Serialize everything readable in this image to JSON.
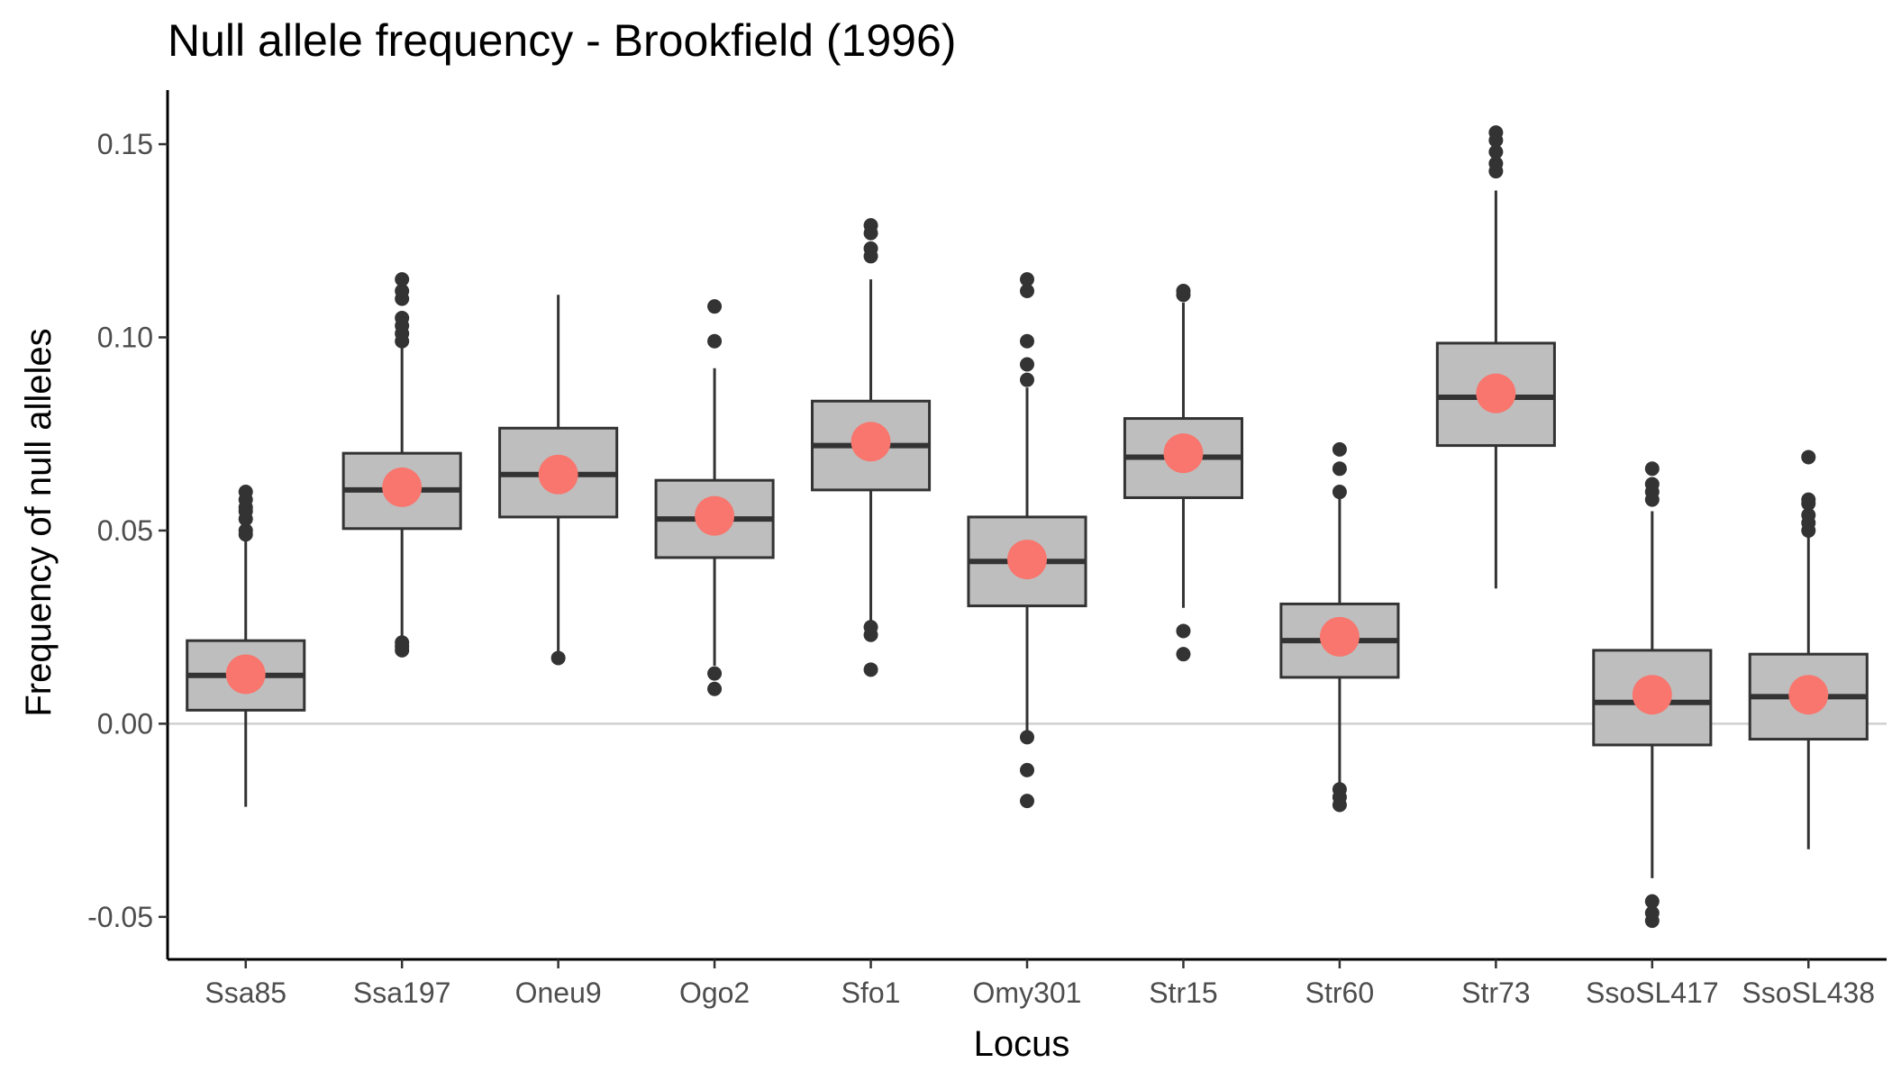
{
  "chart_data": {
    "type": "box",
    "title": "Null allele frequency - Brookfield (1996)",
    "xlabel": "Locus",
    "ylabel": "Frequency of null alleles",
    "ylim": [
      -0.061,
      0.164
    ],
    "yticks": [
      -0.05,
      0.0,
      0.05,
      0.1,
      0.15
    ],
    "ytick_labels": [
      "-0.05",
      "0.00",
      "0.05",
      "0.10",
      "0.15"
    ],
    "reference_line": {
      "y": 0.0,
      "color": "#d0d0d0"
    },
    "box_fill": "#bebebe",
    "box_stroke": "#333333",
    "mean_point_color": "#f8766d",
    "categories": [
      "Ssa85",
      "Ssa197",
      "Oneu9",
      "Ogo2",
      "Sfo1",
      "Omy301",
      "Str15",
      "Str60",
      "Str73",
      "SsoSL417",
      "SsoSL438"
    ],
    "boxes": [
      {
        "label": "Ssa85",
        "q1": 0.0035,
        "median": 0.0125,
        "q3": 0.0215,
        "whisker_low": -0.0215,
        "whisker_high": 0.048,
        "mean": 0.0128,
        "outliers": [
          0.049,
          0.05,
          0.053,
          0.055,
          0.056,
          0.058,
          0.06
        ]
      },
      {
        "label": "Ssa197",
        "q1": 0.0505,
        "median": 0.0605,
        "q3": 0.07,
        "whisker_low": 0.022,
        "whisker_high": 0.098,
        "mean": 0.0612,
        "outliers": [
          0.019,
          0.02,
          0.021,
          0.099,
          0.101,
          0.103,
          0.105,
          0.11,
          0.112,
          0.115
        ]
      },
      {
        "label": "Oneu9",
        "q1": 0.0535,
        "median": 0.0645,
        "q3": 0.0765,
        "whisker_low": 0.018,
        "whisker_high": 0.111,
        "mean": 0.0645,
        "outliers": [
          0.017
        ]
      },
      {
        "label": "Ogo2",
        "q1": 0.043,
        "median": 0.053,
        "q3": 0.063,
        "whisker_low": 0.015,
        "whisker_high": 0.092,
        "mean": 0.0538,
        "outliers": [
          0.009,
          0.013,
          0.099,
          0.108
        ]
      },
      {
        "label": "Sfo1",
        "q1": 0.0605,
        "median": 0.072,
        "q3": 0.0835,
        "whisker_low": 0.026,
        "whisker_high": 0.115,
        "mean": 0.073,
        "outliers": [
          0.014,
          0.023,
          0.025,
          0.121,
          0.123,
          0.127,
          0.129
        ]
      },
      {
        "label": "Omy301",
        "q1": 0.0305,
        "median": 0.042,
        "q3": 0.0535,
        "whisker_low": -0.002,
        "whisker_high": 0.087,
        "mean": 0.0425,
        "outliers": [
          -0.02,
          -0.012,
          -0.0035,
          0.089,
          0.093,
          0.099,
          0.112,
          0.115
        ]
      },
      {
        "label": "Str15",
        "q1": 0.0585,
        "median": 0.069,
        "q3": 0.079,
        "whisker_low": 0.03,
        "whisker_high": 0.109,
        "mean": 0.07,
        "outliers": [
          0.018,
          0.024,
          0.111,
          0.112
        ]
      },
      {
        "label": "Str60",
        "q1": 0.012,
        "median": 0.0215,
        "q3": 0.031,
        "whisker_low": -0.016,
        "whisker_high": 0.059,
        "mean": 0.0225,
        "outliers": [
          -0.021,
          -0.019,
          -0.017,
          0.06,
          0.066,
          0.071
        ]
      },
      {
        "label": "Str73",
        "q1": 0.072,
        "median": 0.0845,
        "q3": 0.0985,
        "whisker_low": 0.035,
        "whisker_high": 0.138,
        "mean": 0.0855,
        "outliers": [
          0.143,
          0.145,
          0.148,
          0.151,
          0.153
        ]
      },
      {
        "label": "SsoSL417",
        "q1": -0.0055,
        "median": 0.0055,
        "q3": 0.019,
        "whisker_low": -0.04,
        "whisker_high": 0.055,
        "mean": 0.0075,
        "outliers": [
          -0.051,
          -0.049,
          -0.046,
          0.058,
          0.06,
          0.062,
          0.066
        ]
      },
      {
        "label": "SsoSL438",
        "q1": -0.004,
        "median": 0.007,
        "q3": 0.018,
        "whisker_low": -0.0325,
        "whisker_high": 0.049,
        "mean": 0.0075,
        "outliers": [
          0.05,
          0.052,
          0.054,
          0.057,
          0.058,
          0.069
        ]
      }
    ]
  }
}
